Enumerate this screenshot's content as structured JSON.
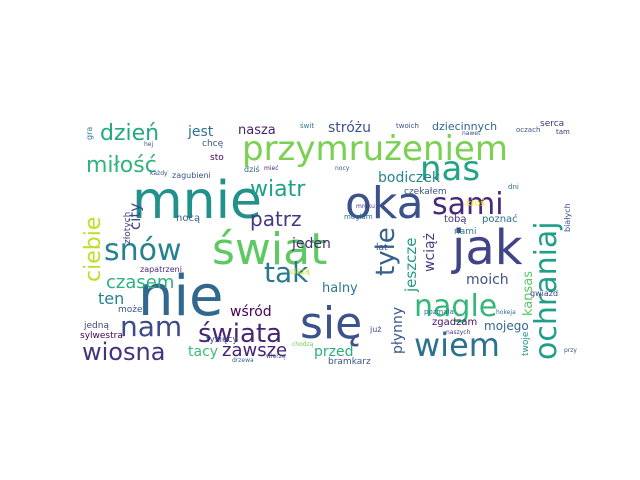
{
  "palette": {
    "deep_purple": "#440154",
    "indigo": "#3b528b",
    "blue": "#31688e",
    "teal": "#21918c",
    "green": "#35b779",
    "lime": "#90d743",
    "yellow": "#fde725"
  },
  "words": [
    {
      "text": "przymrużeniem",
      "color": "#7ad151"
    },
    {
      "text": "mnie",
      "color": "#21918c"
    },
    {
      "text": "nie",
      "color": "#31688e"
    },
    {
      "text": "świat",
      "color": "#5ec962"
    },
    {
      "text": "jak",
      "color": "#414487"
    },
    {
      "text": "oka",
      "color": "#3b528b"
    },
    {
      "text": "się",
      "color": "#3b528b"
    },
    {
      "text": "ochraniaj",
      "color": "#1f9e89"
    },
    {
      "text": "nas",
      "color": "#20a486"
    },
    {
      "text": "sami",
      "color": "#482878"
    },
    {
      "text": "snów",
      "color": "#26828e"
    },
    {
      "text": "tak",
      "color": "#2a788e"
    },
    {
      "text": "nagle",
      "color": "#35b779"
    },
    {
      "text": "nam",
      "color": "#3e4a89"
    },
    {
      "text": "świata",
      "color": "#482475"
    },
    {
      "text": "wiem",
      "color": "#2c728e"
    },
    {
      "text": "wiosna",
      "color": "#46327e"
    },
    {
      "text": "dzień",
      "color": "#22a884"
    },
    {
      "text": "miłość",
      "color": "#2fb47c"
    },
    {
      "text": "ciebie",
      "color": "#bddf26"
    },
    {
      "text": "tyle",
      "color": "#355f8d"
    },
    {
      "text": "wiatr",
      "color": "#1fa187"
    },
    {
      "text": "patrz",
      "color": "#453781"
    },
    {
      "text": "czasem",
      "color": "#2db27d"
    },
    {
      "text": "zawsze",
      "color": "#482173"
    },
    {
      "text": "bodiczek",
      "color": "#24868e"
    },
    {
      "text": "jeszcze",
      "color": "#1e9b8a"
    },
    {
      "text": "kansas",
      "color": "#5cc863"
    },
    {
      "text": "moich",
      "color": "#3b528b"
    },
    {
      "text": "ten",
      "color": "#26828e"
    },
    {
      "text": "jeden",
      "color": "#472d7b"
    },
    {
      "text": "halny",
      "color": "#2a788e"
    },
    {
      "text": "płynny",
      "color": "#38598c"
    },
    {
      "text": "wciąż",
      "color": "#433e85"
    },
    {
      "text": "przed",
      "color": "#29af7f"
    },
    {
      "text": "tacy",
      "color": "#3dbc74"
    },
    {
      "text": "mojego",
      "color": "#31688e"
    },
    {
      "text": "city",
      "color": "#3f4788"
    },
    {
      "text": "jest",
      "color": "#2c728e"
    },
    {
      "text": "nasza",
      "color": "#481f70"
    },
    {
      "text": "stróżu",
      "color": "#3b528b"
    },
    {
      "text": "wśród",
      "color": "#440154"
    },
    {
      "text": "dziecinnych",
      "color": "#31688e"
    },
    {
      "text": "zgadzam",
      "color": "#471063"
    },
    {
      "text": "poznać",
      "color": "#2c728e"
    },
    {
      "text": "tobą",
      "color": "#46307e"
    },
    {
      "text": "ktoś",
      "color": "#fde725"
    },
    {
      "text": "czekałem",
      "color": "#3b528b"
    },
    {
      "text": "mogłam",
      "color": "#2c728e"
    },
    {
      "text": "nami",
      "color": "#2a788e"
    },
    {
      "text": "lat",
      "color": "#3b528b"
    },
    {
      "text": "nocą",
      "color": "#355f8d"
    },
    {
      "text": "złotych",
      "color": "#433e85"
    },
    {
      "text": "może",
      "color": "#39568c"
    },
    {
      "text": "sylwestra",
      "color": "#440154"
    },
    {
      "text": "jedną",
      "color": "#414487"
    },
    {
      "text": "zapatrzeni",
      "color": "#482878"
    },
    {
      "text": "tysięcy",
      "color": "#3b528b"
    },
    {
      "text": "ciszą",
      "color": "#c8e020"
    },
    {
      "text": "chodzą",
      "color": "#6ece58"
    },
    {
      "text": "wierzę",
      "color": "#3e4a89"
    },
    {
      "text": "drzewa",
      "color": "#31688e"
    },
    {
      "text": "bramkarz",
      "color": "#3b528b"
    },
    {
      "text": "już",
      "color": "#3e4a89"
    },
    {
      "text": "pozmała",
      "color": "#2c728e"
    },
    {
      "text": "naszych",
      "color": "#443983"
    },
    {
      "text": "twoje",
      "color": "#21918c"
    },
    {
      "text": "gwiazd",
      "color": "#433e85"
    },
    {
      "text": "hokeja",
      "color": "#2c728e"
    },
    {
      "text": "serca",
      "color": "#46327e"
    },
    {
      "text": "oczach",
      "color": "#3b528b"
    },
    {
      "text": "tam",
      "color": "#46307e"
    },
    {
      "text": "twoich",
      "color": "#3b528b"
    },
    {
      "text": "nawet",
      "color": "#3e4a89"
    },
    {
      "text": "świt",
      "color": "#2a788e"
    },
    {
      "text": "nocy",
      "color": "#3b528b"
    },
    {
      "text": "mroku",
      "color": "#443983"
    },
    {
      "text": "dni",
      "color": "#2c728e"
    },
    {
      "text": "gra",
      "color": "#2c728e"
    },
    {
      "text": "chcę",
      "color": "#39568c"
    },
    {
      "text": "sto",
      "color": "#440154"
    },
    {
      "text": "hej",
      "color": "#3b528b"
    },
    {
      "text": "każdy",
      "color": "#3b528b"
    },
    {
      "text": "zagubieni",
      "color": "#3b528b"
    },
    {
      "text": "dziś",
      "color": "#31688e"
    },
    {
      "text": "mieć",
      "color": "#482173"
    },
    {
      "text": "białych",
      "color": "#3b528b"
    },
    {
      "text": "przy",
      "color": "#3b528b"
    }
  ]
}
